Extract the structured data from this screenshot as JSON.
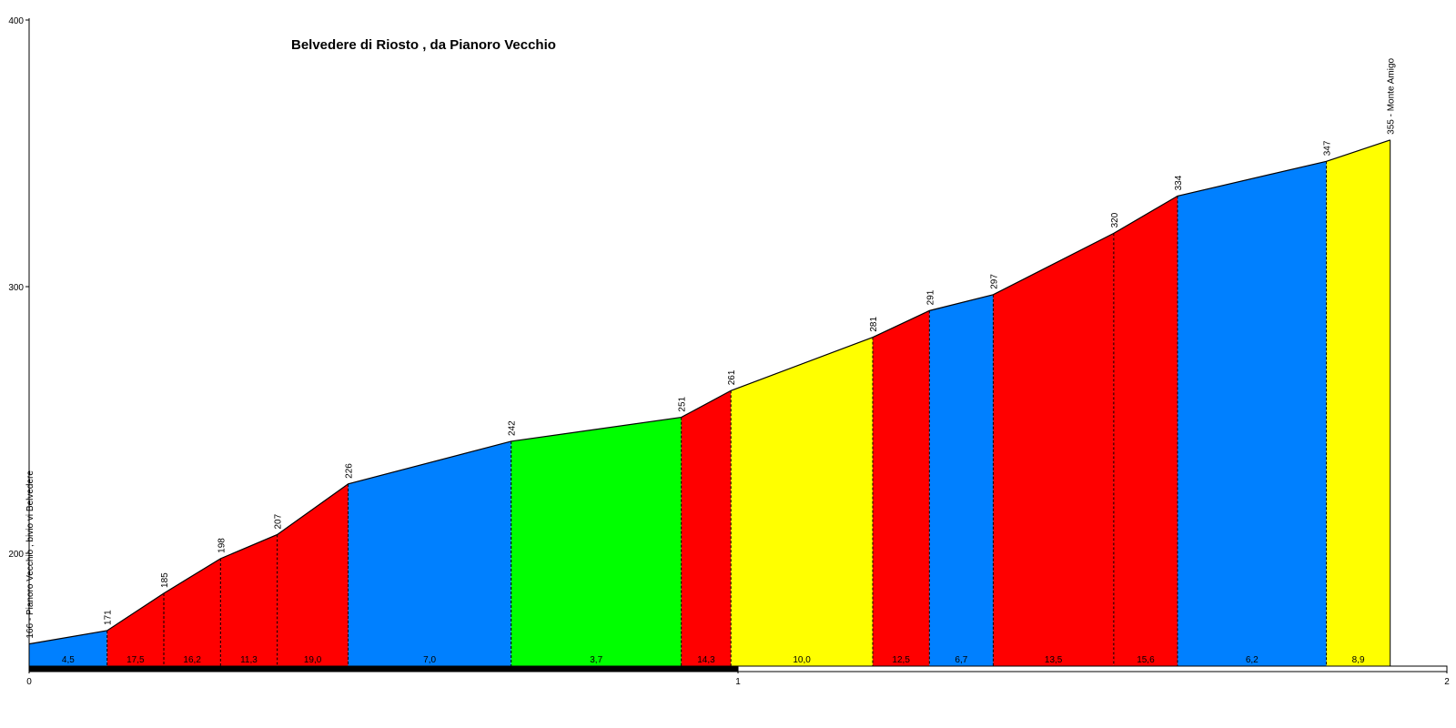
{
  "chart_data": {
    "type": "area",
    "title": "Belvedere di Riosto , da Pianoro Vecchio",
    "xlabel": "",
    "ylabel": "",
    "xlim": [
      0,
      2
    ],
    "ylim": [
      160,
      400
    ],
    "x_ticks": [
      "0",
      "1",
      "2"
    ],
    "y_ticks": [
      "200",
      "300",
      "400"
    ],
    "x_tick_values": [
      0,
      1,
      2
    ],
    "y_tick_values": [
      200,
      300,
      400
    ],
    "grid": false,
    "points": [
      {
        "x": 0.0,
        "elev": 166,
        "label": "166 - Pianoro Vecchio , bivio vi Belvedere"
      },
      {
        "x": 0.11,
        "elev": 171,
        "label": "171"
      },
      {
        "x": 0.19,
        "elev": 185,
        "label": "185"
      },
      {
        "x": 0.27,
        "elev": 198,
        "label": "198"
      },
      {
        "x": 0.35,
        "elev": 207,
        "label": "207"
      },
      {
        "x": 0.45,
        "elev": 226,
        "label": "226"
      },
      {
        "x": 0.68,
        "elev": 242,
        "label": "242"
      },
      {
        "x": 0.92,
        "elev": 251,
        "label": "251"
      },
      {
        "x": 0.99,
        "elev": 261,
        "label": "261"
      },
      {
        "x": 1.19,
        "elev": 281,
        "label": "281"
      },
      {
        "x": 1.27,
        "elev": 291,
        "label": "291"
      },
      {
        "x": 1.36,
        "elev": 297,
        "label": "297"
      },
      {
        "x": 1.53,
        "elev": 320,
        "label": "320"
      },
      {
        "x": 1.62,
        "elev": 334,
        "label": "334"
      },
      {
        "x": 1.83,
        "elev": 347,
        "label": "347"
      },
      {
        "x": 1.92,
        "elev": 355,
        "label": "355 - Monte Amigo"
      }
    ],
    "segments": [
      {
        "grade": "4,5",
        "color": "#0080ff"
      },
      {
        "grade": "17,5",
        "color": "#ff0000"
      },
      {
        "grade": "16,2",
        "color": "#ff0000"
      },
      {
        "grade": "11,3",
        "color": "#ff0000"
      },
      {
        "grade": "19,0",
        "color": "#ff0000"
      },
      {
        "grade": "7,0",
        "color": "#0080ff"
      },
      {
        "grade": "3,7",
        "color": "#00ff00"
      },
      {
        "grade": "14,3",
        "color": "#ff0000"
      },
      {
        "grade": "10,0",
        "color": "#ffff00"
      },
      {
        "grade": "12,5",
        "color": "#ff0000"
      },
      {
        "grade": "6,7",
        "color": "#0080ff"
      },
      {
        "grade": "13,5",
        "color": "#ff0000"
      },
      {
        "grade": "15,6",
        "color": "#ff0000"
      },
      {
        "grade": "6,2",
        "color": "#0080ff"
      },
      {
        "grade": "8,9",
        "color": "#ffff00"
      }
    ]
  }
}
